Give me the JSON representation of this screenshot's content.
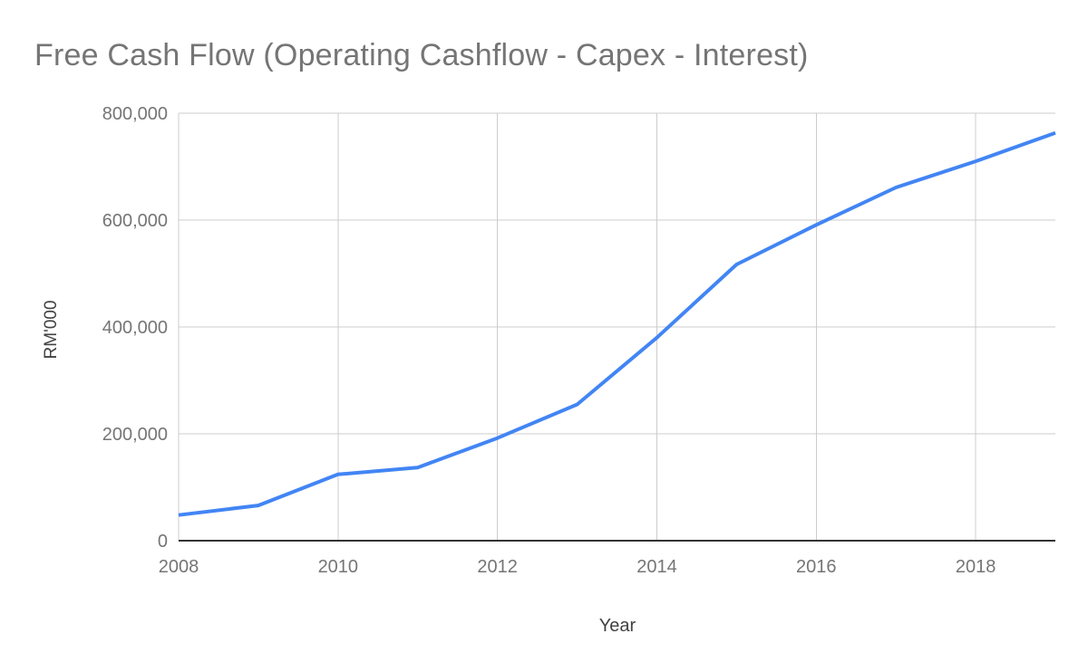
{
  "chart_data": {
    "type": "line",
    "title": "Free Cash Flow (Operating Cashflow - Capex - Interest)",
    "xlabel": "Year",
    "ylabel": "RM'000",
    "x": [
      2008,
      2009,
      2010,
      2011,
      2012,
      2013,
      2014,
      2015,
      2016,
      2017,
      2018,
      2019
    ],
    "values": [
      48000,
      66000,
      124000,
      137000,
      192000,
      255000,
      380000,
      517000,
      591000,
      661000,
      710000,
      763000
    ],
    "xlim": [
      2008,
      2019
    ],
    "ylim": [
      0,
      800000
    ],
    "x_tick_years": [
      2008,
      2010,
      2012,
      2014,
      2016,
      2018
    ],
    "y_ticks": [
      0,
      200000,
      400000,
      600000,
      800000
    ],
    "grid": true,
    "legend": "none",
    "colors": {
      "line": "#4285f4",
      "grid": "#cccccc",
      "axis": "#333333",
      "title_text": "#757575",
      "tick_text": "#757575",
      "axis_title_text": "#424242",
      "background": "#ffffff"
    }
  }
}
